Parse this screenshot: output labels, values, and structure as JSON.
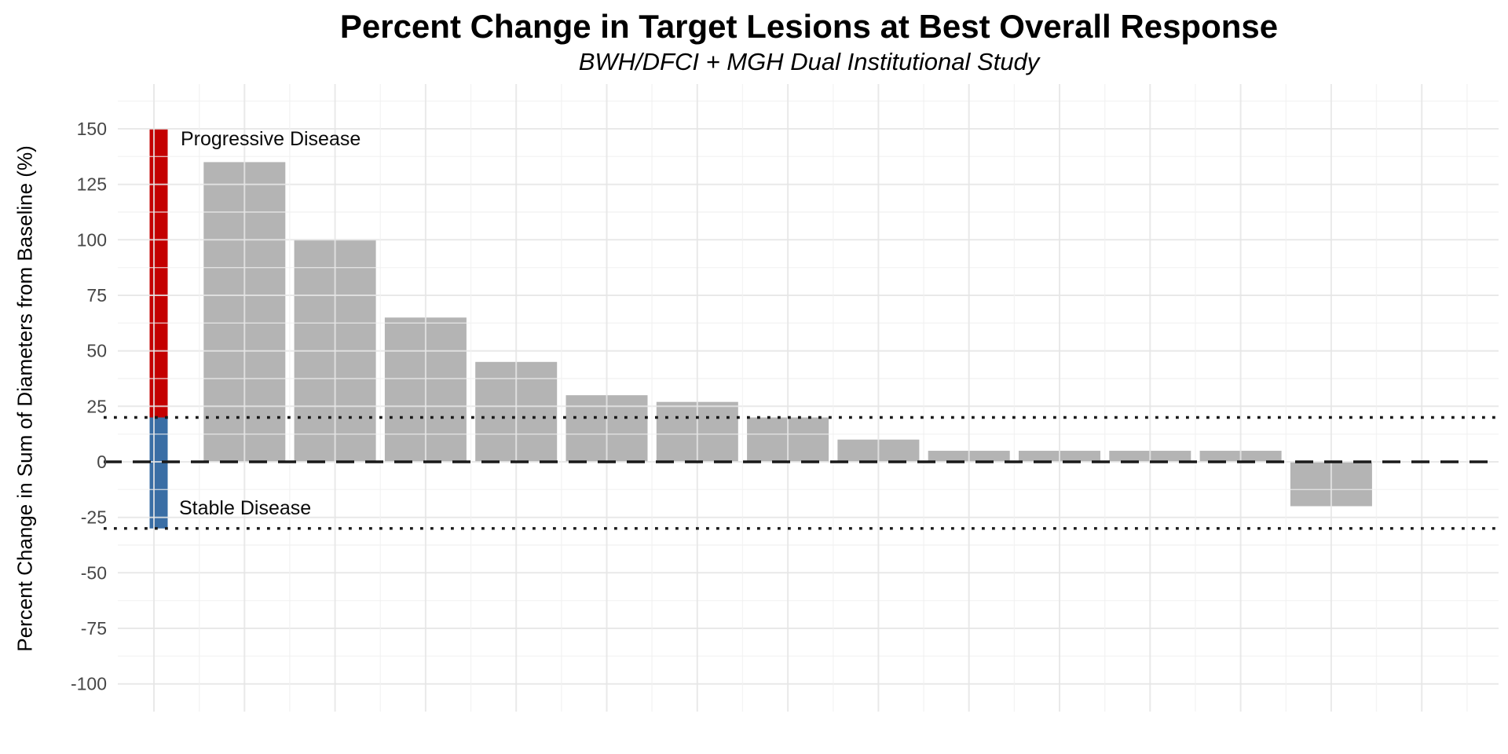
{
  "header": {
    "title": "Percent Change in Target Lesions at Best Overall Response",
    "subtitle": "BWH/DFCI + MGH Dual Institutional Study"
  },
  "y_axis": {
    "title": "Percent Change in Sum of Diameters from Baseline (%)",
    "tick_labels": [
      "150",
      "125",
      "100",
      "75",
      "50",
      "25",
      "0",
      "-25",
      "-50",
      "-75",
      "-100"
    ]
  },
  "annotations": {
    "progressive_label": "Progressive Disease",
    "stable_label": "Stable Disease"
  },
  "colors": {
    "bar_fill": "#B4B4B4",
    "progressive_red": "#C40000",
    "stable_blue": "#3A6EA5",
    "reference_line": "#1A1A1A",
    "tick_text": "#474747",
    "background": "#FFFFFF"
  },
  "chart_data": {
    "type": "bar",
    "title": "Percent Change in Target Lesions at Best Overall Response",
    "subtitle": "BWH/DFCI + MGH Dual Institutional Study",
    "xlabel": "",
    "ylabel": "Percent Change in Sum of Diameters from Baseline (%)",
    "ylim": [
      -112,
      170
    ],
    "yticks": [
      150,
      125,
      100,
      75,
      50,
      25,
      0,
      -25,
      -50,
      -75,
      -100
    ],
    "grid": true,
    "legend": false,
    "x_axis_labels": [],
    "values": [
      135,
      100,
      65,
      45,
      30,
      27,
      20,
      10,
      5,
      5,
      5,
      5,
      -20
    ],
    "reference_lines": [
      {
        "y": 20,
        "style": "dotted"
      },
      {
        "y": 0,
        "style": "dashed"
      },
      {
        "y": -30,
        "style": "dotted"
      }
    ],
    "threshold_bar": {
      "segments": [
        {
          "label": "Progressive Disease",
          "from": 20,
          "to": 150,
          "color": "#C40000"
        },
        {
          "label": "Stable Disease",
          "from": -30,
          "to": 20,
          "color": "#3A6EA5"
        }
      ]
    }
  }
}
